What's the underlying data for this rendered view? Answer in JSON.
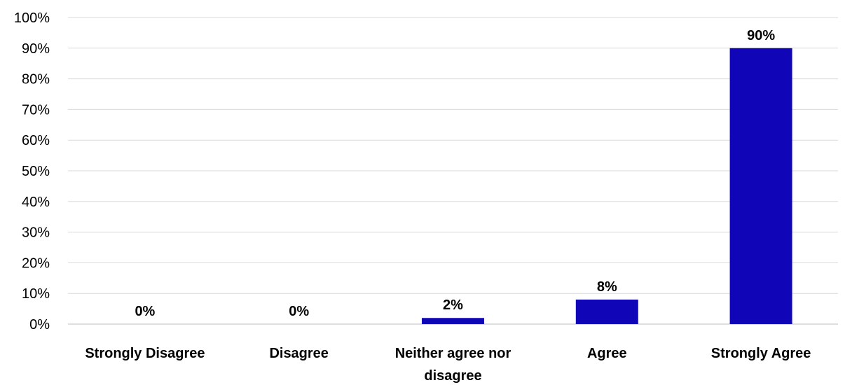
{
  "chart_data": {
    "type": "bar",
    "title": "",
    "xlabel": "",
    "ylabel": "",
    "categories": [
      [
        "Strongly Disagree"
      ],
      [
        "Disagree"
      ],
      [
        "Neither agree nor",
        "disagree"
      ],
      [
        "Agree"
      ],
      [
        "Strongly Agree"
      ]
    ],
    "values": [
      0,
      0,
      2,
      8,
      90
    ],
    "data_labels": [
      "0%",
      "0%",
      "2%",
      "8%",
      "90%"
    ],
    "ylim": [
      0,
      100
    ],
    "y_ticks": [
      0,
      10,
      20,
      30,
      40,
      50,
      60,
      70,
      80,
      90,
      100
    ],
    "y_tick_labels": [
      "0%",
      "10%",
      "20%",
      "30%",
      "40%",
      "50%",
      "60%",
      "70%",
      "80%",
      "90%",
      "100%"
    ],
    "grid": true,
    "legend": "none",
    "bar_color": "#1006b8"
  }
}
